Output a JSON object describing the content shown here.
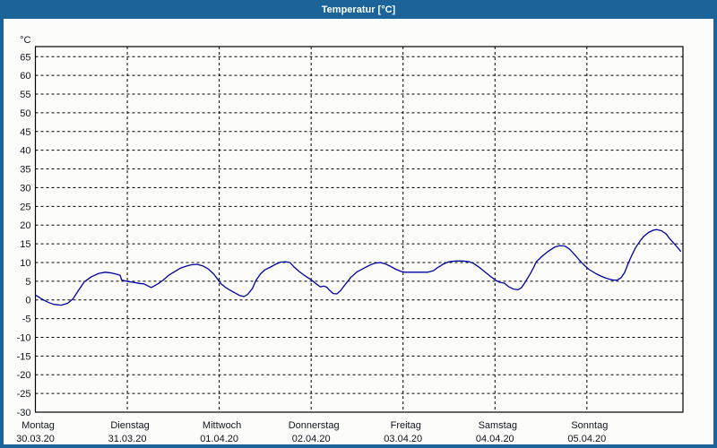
{
  "window": {
    "title": "Temperatur [°C]"
  },
  "colors": {
    "frame": "#1b6398",
    "titlebar_bg": "#1b6398",
    "titlebar_text": "#ffffff",
    "plot_bg": "#fcfdfa",
    "grid": "#000000",
    "axis": "#000000",
    "label_text": "#10141c",
    "line": "#0000a0"
  },
  "chart_data": {
    "type": "line",
    "title": "Temperatur [°C]",
    "y_unit_label": "°C",
    "xlabel": "",
    "ylabel": "°C",
    "ylim": [
      -30,
      67.7
    ],
    "xlim_days": [
      0,
      7.045
    ],
    "grid": "dashed",
    "legend": "none",
    "y_ticks": [
      65,
      60,
      55,
      50,
      45,
      40,
      35,
      30,
      25,
      20,
      15,
      10,
      5,
      0,
      -5,
      -10,
      -15,
      -20,
      -25,
      -30
    ],
    "x_days": [
      {
        "name": "Montag",
        "date": "30.03.20"
      },
      {
        "name": "Dienstag",
        "date": "31.03.20"
      },
      {
        "name": "Mittwoch",
        "date": "01.04.20"
      },
      {
        "name": "Donnerstag",
        "date": "02.04.20"
      },
      {
        "name": "Freitag",
        "date": "03.04.20"
      },
      {
        "name": "Samstag",
        "date": "04.04.20"
      },
      {
        "name": "Sonntag",
        "date": "05.04.20"
      }
    ],
    "series": [
      {
        "name": "Temperatur",
        "unit": "°C",
        "points": [
          [
            0.007,
            1.2
          ],
          [
            0.065,
            0.3
          ],
          [
            0.134,
            -0.6
          ],
          [
            0.2,
            -1.2
          ],
          [
            0.28,
            -1.4
          ],
          [
            0.35,
            -0.9
          ],
          [
            0.41,
            0.3
          ],
          [
            0.47,
            2.6
          ],
          [
            0.53,
            4.8
          ],
          [
            0.61,
            6.2
          ],
          [
            0.69,
            7.1
          ],
          [
            0.76,
            7.4
          ],
          [
            0.83,
            7.2
          ],
          [
            0.89,
            6.8
          ],
          [
            0.92,
            6.6
          ],
          [
            0.94,
            5.3
          ],
          [
            1.01,
            4.9
          ],
          [
            1.07,
            4.7
          ],
          [
            1.13,
            4.4
          ],
          [
            1.18,
            4.3
          ],
          [
            1.22,
            3.8
          ],
          [
            1.26,
            3.3
          ],
          [
            1.29,
            3.7
          ],
          [
            1.34,
            4.4
          ],
          [
            1.39,
            5.3
          ],
          [
            1.45,
            6.6
          ],
          [
            1.51,
            7.5
          ],
          [
            1.58,
            8.5
          ],
          [
            1.65,
            9.1
          ],
          [
            1.7,
            9.4
          ],
          [
            1.76,
            9.5
          ],
          [
            1.82,
            9.1
          ],
          [
            1.88,
            8.3
          ],
          [
            1.94,
            6.9
          ],
          [
            1.98,
            5.6
          ],
          [
            2.02,
            4.3
          ],
          [
            2.07,
            3.3
          ],
          [
            2.12,
            2.6
          ],
          [
            2.17,
            1.9
          ],
          [
            2.22,
            1.2
          ],
          [
            2.27,
            0.9
          ],
          [
            2.31,
            1.5
          ],
          [
            2.36,
            3.0
          ],
          [
            2.4,
            5.2
          ],
          [
            2.45,
            7.0
          ],
          [
            2.5,
            8.1
          ],
          [
            2.56,
            8.8
          ],
          [
            2.62,
            9.6
          ],
          [
            2.67,
            10.1
          ],
          [
            2.72,
            10.2
          ],
          [
            2.77,
            10.0
          ],
          [
            2.81,
            8.9
          ],
          [
            2.87,
            7.6
          ],
          [
            2.93,
            6.5
          ],
          [
            2.98,
            5.7
          ],
          [
            3.02,
            5.0
          ],
          [
            3.06,
            4.2
          ],
          [
            3.1,
            3.5
          ],
          [
            3.14,
            3.7
          ],
          [
            3.17,
            3.4
          ],
          [
            3.2,
            2.6
          ],
          [
            3.24,
            1.7
          ],
          [
            3.28,
            1.6
          ],
          [
            3.32,
            2.5
          ],
          [
            3.37,
            4.1
          ],
          [
            3.43,
            6.0
          ],
          [
            3.5,
            7.5
          ],
          [
            3.57,
            8.4
          ],
          [
            3.63,
            9.2
          ],
          [
            3.69,
            9.8
          ],
          [
            3.75,
            10.0
          ],
          [
            3.8,
            9.7
          ],
          [
            3.86,
            9.0
          ],
          [
            3.92,
            8.2
          ],
          [
            3.98,
            7.6
          ],
          [
            4.02,
            7.4
          ],
          [
            4.1,
            7.4
          ],
          [
            4.18,
            7.4
          ],
          [
            4.27,
            7.4
          ],
          [
            4.33,
            7.8
          ],
          [
            4.38,
            8.7
          ],
          [
            4.44,
            9.6
          ],
          [
            4.5,
            10.2
          ],
          [
            4.57,
            10.4
          ],
          [
            4.65,
            10.4
          ],
          [
            4.72,
            10.2
          ],
          [
            4.77,
            9.7
          ],
          [
            4.84,
            8.5
          ],
          [
            4.9,
            7.3
          ],
          [
            4.96,
            6.1
          ],
          [
            5.01,
            5.2
          ],
          [
            5.05,
            4.7
          ],
          [
            5.1,
            4.5
          ],
          [
            5.15,
            3.5
          ],
          [
            5.2,
            2.9
          ],
          [
            5.25,
            2.7
          ],
          [
            5.29,
            3.3
          ],
          [
            5.32,
            4.4
          ],
          [
            5.38,
            6.8
          ],
          [
            5.42,
            8.6
          ],
          [
            5.45,
            10.2
          ],
          [
            5.52,
            11.8
          ],
          [
            5.58,
            13.0
          ],
          [
            5.65,
            14.1
          ],
          [
            5.7,
            14.5
          ],
          [
            5.76,
            14.4
          ],
          [
            5.81,
            13.6
          ],
          [
            5.87,
            12.0
          ],
          [
            5.92,
            10.6
          ],
          [
            5.97,
            9.3
          ],
          [
            6.02,
            8.2
          ],
          [
            6.1,
            7.0
          ],
          [
            6.15,
            6.4
          ],
          [
            6.2,
            5.9
          ],
          [
            6.25,
            5.5
          ],
          [
            6.29,
            5.3
          ],
          [
            6.33,
            5.3
          ],
          [
            6.37,
            5.9
          ],
          [
            6.41,
            7.3
          ],
          [
            6.45,
            9.8
          ],
          [
            6.49,
            12.0
          ],
          [
            6.53,
            14.0
          ],
          [
            6.58,
            15.8
          ],
          [
            6.62,
            17.0
          ],
          [
            6.67,
            18.0
          ],
          [
            6.72,
            18.6
          ],
          [
            6.76,
            18.8
          ],
          [
            6.81,
            18.5
          ],
          [
            6.86,
            17.7
          ],
          [
            6.9,
            16.4
          ],
          [
            6.95,
            15.0
          ],
          [
            6.99,
            13.9
          ],
          [
            7.02,
            13.0
          ]
        ]
      }
    ]
  }
}
